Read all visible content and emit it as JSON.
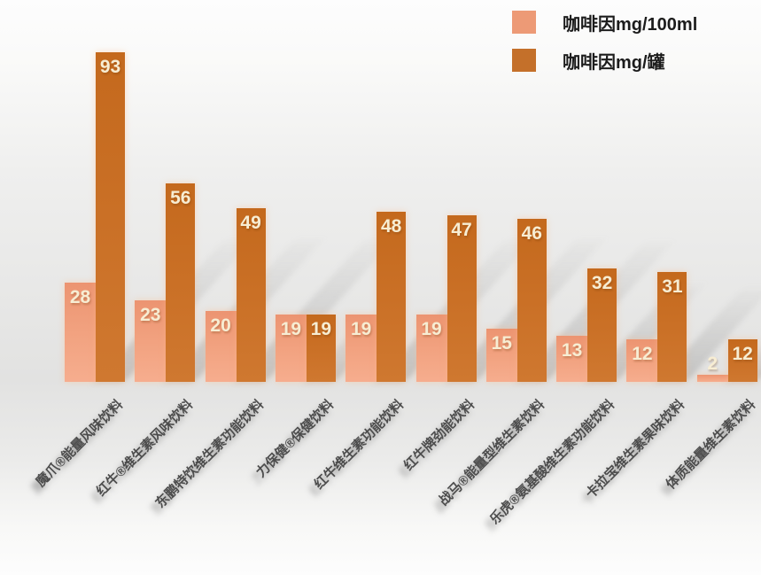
{
  "chart_data": {
    "type": "bar",
    "title": "",
    "xlabel": "",
    "ylabel": "",
    "ylim": [
      0,
      100
    ],
    "grid": false,
    "legend_position": "top-right",
    "value_labels": "on-bar-top",
    "categories": [
      "魔爪®能量风味饮料",
      "红牛®维生素风味饮料",
      "东鹏特饮维生素功能饮料",
      "力保健®保健饮料",
      "红牛维生素功能饮料",
      "红牛牌劲能饮料",
      "战马®能量型维生素饮料",
      "乐虎®氨基酸维生素功能饮料",
      "卡拉宝维生素果味饮料",
      "体质能量维生素饮料"
    ],
    "series": [
      {
        "name": "咖啡因mg/100ml",
        "color": "#ed9a76",
        "values": [
          28,
          23,
          20,
          19,
          19,
          19,
          15,
          13,
          12,
          2
        ]
      },
      {
        "name": "咖啡因mg/罐",
        "color": "#c4702a",
        "values": [
          93,
          56,
          49,
          19,
          48,
          47,
          46,
          32,
          31,
          12
        ]
      }
    ]
  },
  "colors": {
    "bar_light": "#ed9a76",
    "bar_dark": "#c4702a",
    "value_text": "#f7edd3",
    "category_text": "#4d4d4d",
    "background_mid": "#e2e2e1"
  }
}
